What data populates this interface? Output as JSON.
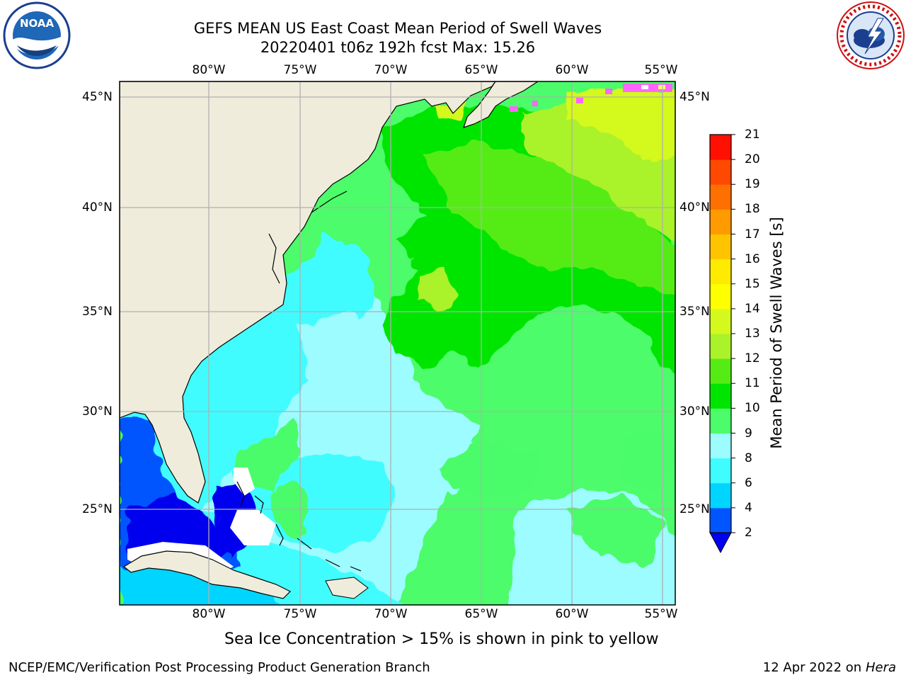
{
  "figure": {
    "title_line1": "GEFS MEAN US East Coast Mean Period of Swell Waves",
    "title_line2": "20220401 t06z 192h fcst   Max: 15.26",
    "ice_note": "Sea Ice Concentration > 15% is shown in pink to yellow",
    "footer_left": "NCEP/EMC/Verification Post Processing Product Generation Branch",
    "footer_date": "12 Apr 2022 on",
    "footer_machine": "Hera"
  },
  "logos": {
    "left": "noaa-logo",
    "left_text": "NOAA",
    "right": "nws-logo"
  },
  "map": {
    "lon_labels": [
      "80°W",
      "75°W",
      "70°W",
      "65°W",
      "60°W",
      "55°W"
    ],
    "lat_labels": [
      "45°N",
      "40°N",
      "35°N",
      "30°N",
      "25°N"
    ],
    "land_color": "#efecdc",
    "grid_color": "#b0b0b0",
    "extent": {
      "lon_min": -85,
      "lon_max": -54.3,
      "lat_min": 20.5,
      "lat_max": 45.8
    }
  },
  "colorbar": {
    "title": "Mean Period of Swell Waves [s]",
    "ticks": [
      "2",
      "4",
      "6",
      "8",
      "9",
      "10",
      "11",
      "12",
      "13",
      "14",
      "15",
      "16",
      "17",
      "18",
      "19",
      "20",
      "21"
    ],
    "colors": [
      "#0055ff",
      "#00d5ff",
      "#3ffcff",
      "#9cfcff",
      "#4cfc6a",
      "#00e500",
      "#55ec13",
      "#aaf229",
      "#d4f91d",
      "#ffff00",
      "#ffeb00",
      "#ffc400",
      "#ff9b00",
      "#ff7000",
      "#ff4800",
      "#ff1000"
    ],
    "extend_min_color": "#0000ee"
  },
  "chart_data": {
    "type": "heatmap",
    "title": "GEFS MEAN US East Coast Mean Period of Swell Waves",
    "subtitle": "20220401 t06z 192h fcst   Max: 15.26",
    "colorbar_label": "Mean Period of Swell Waves [s]",
    "levels": [
      2,
      4,
      6,
      8,
      9,
      10,
      11,
      12,
      13,
      14,
      15,
      16,
      17,
      18,
      19,
      20,
      21
    ],
    "max": 15.26,
    "lon_range": [
      -85,
      -54.3
    ],
    "lat_range": [
      20.5,
      45.8
    ],
    "regions": [
      {
        "area": "Gulf of Mexico / Yucatan Channel",
        "level": "2-4"
      },
      {
        "area": "Caribbean south of Cuba",
        "level": "4-6"
      },
      {
        "area": "SE US shelf and Sargasso Sea",
        "level": "6-8"
      },
      {
        "area": "Subtropical western Atlantic",
        "level": "8-9"
      },
      {
        "area": "Open Atlantic 28-40N",
        "level": "9-10"
      },
      {
        "area": "Gulf Stream offshore 35-40N",
        "level": "10-11"
      },
      {
        "area": "Northeast quadrant north of 38N",
        "level": "11-13"
      },
      {
        "area": "Gulf of Maine / Nova Scotia shelf",
        "level": "13-14"
      }
    ]
  }
}
